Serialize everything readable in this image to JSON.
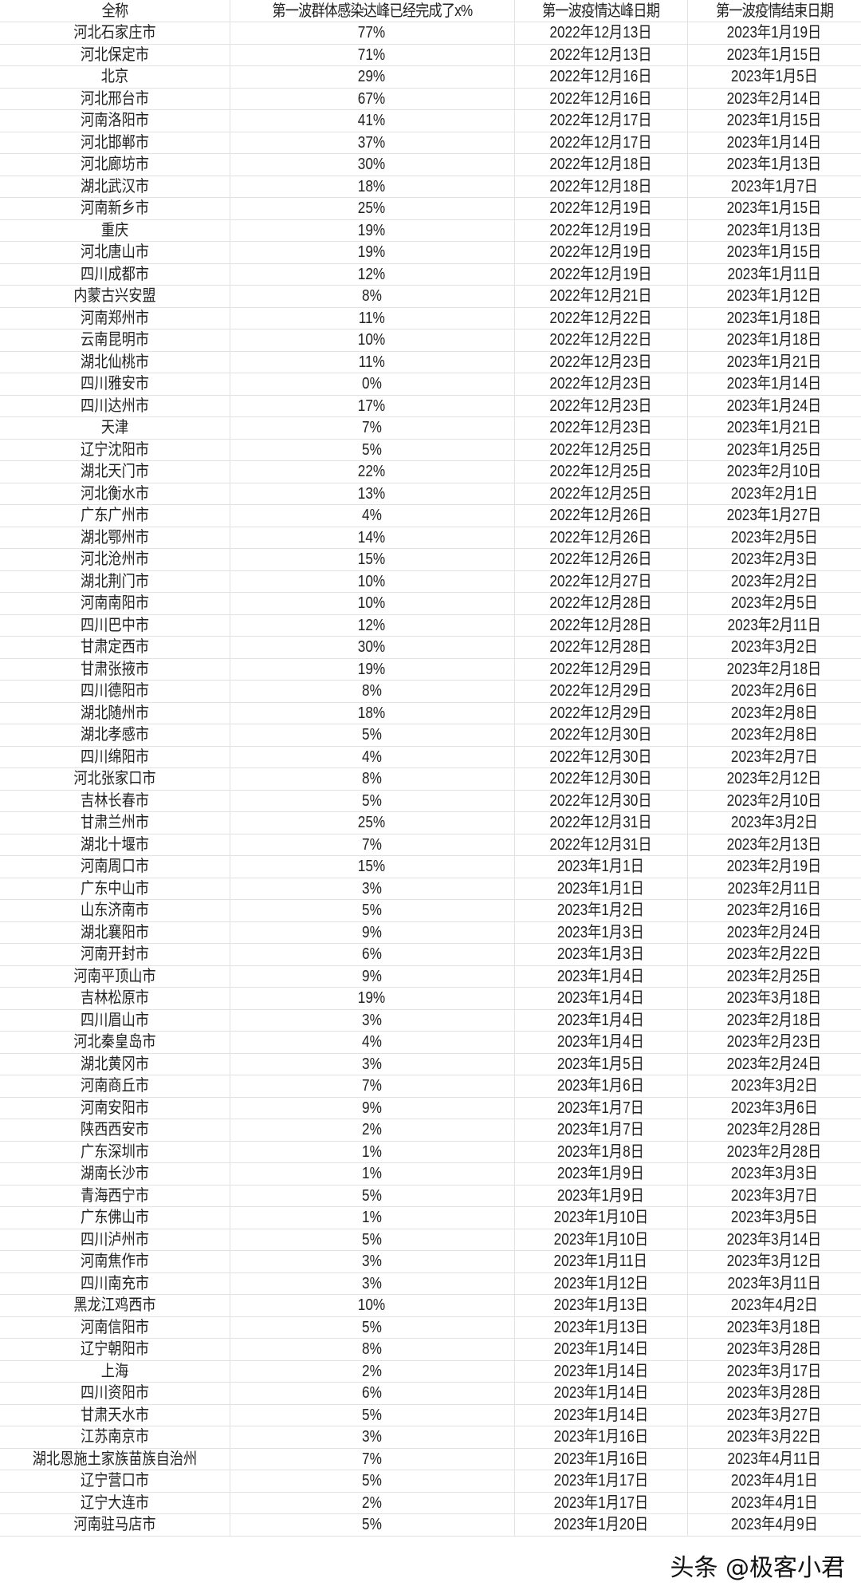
{
  "table": {
    "headers": [
      "全称",
      "第一波群体感染达峰已经完成了x%",
      "第一波疫情达峰日期",
      "第一波疫情结束日期"
    ],
    "rows": [
      [
        "河北石家庄市",
        "77%",
        "2022年12月13日",
        "2023年1月19日"
      ],
      [
        "河北保定市",
        "71%",
        "2022年12月13日",
        "2023年1月15日"
      ],
      [
        "北京",
        "29%",
        "2022年12月16日",
        "2023年1月5日"
      ],
      [
        "河北邢台市",
        "67%",
        "2022年12月16日",
        "2023年2月14日"
      ],
      [
        "河南洛阳市",
        "41%",
        "2022年12月17日",
        "2023年1月15日"
      ],
      [
        "河北邯郸市",
        "37%",
        "2022年12月17日",
        "2023年1月14日"
      ],
      [
        "河北廊坊市",
        "30%",
        "2022年12月18日",
        "2023年1月13日"
      ],
      [
        "湖北武汉市",
        "18%",
        "2022年12月18日",
        "2023年1月7日"
      ],
      [
        "河南新乡市",
        "25%",
        "2022年12月19日",
        "2023年1月15日"
      ],
      [
        "重庆",
        "19%",
        "2022年12月19日",
        "2023年1月13日"
      ],
      [
        "河北唐山市",
        "19%",
        "2022年12月19日",
        "2023年1月15日"
      ],
      [
        "四川成都市",
        "12%",
        "2022年12月19日",
        "2023年1月11日"
      ],
      [
        "内蒙古兴安盟",
        "8%",
        "2022年12月21日",
        "2023年1月12日"
      ],
      [
        "河南郑州市",
        "11%",
        "2022年12月22日",
        "2023年1月18日"
      ],
      [
        "云南昆明市",
        "10%",
        "2022年12月22日",
        "2023年1月18日"
      ],
      [
        "湖北仙桃市",
        "11%",
        "2022年12月23日",
        "2023年1月21日"
      ],
      [
        "四川雅安市",
        "0%",
        "2022年12月23日",
        "2023年1月14日"
      ],
      [
        "四川达州市",
        "17%",
        "2022年12月23日",
        "2023年1月24日"
      ],
      [
        "天津",
        "7%",
        "2022年12月23日",
        "2023年1月21日"
      ],
      [
        "辽宁沈阳市",
        "5%",
        "2022年12月25日",
        "2023年1月25日"
      ],
      [
        "湖北天门市",
        "22%",
        "2022年12月25日",
        "2023年2月10日"
      ],
      [
        "河北衡水市",
        "13%",
        "2022年12月25日",
        "2023年2月1日"
      ],
      [
        "广东广州市",
        "4%",
        "2022年12月26日",
        "2023年1月27日"
      ],
      [
        "湖北鄂州市",
        "14%",
        "2022年12月26日",
        "2023年2月5日"
      ],
      [
        "河北沧州市",
        "15%",
        "2022年12月26日",
        "2023年2月3日"
      ],
      [
        "湖北荆门市",
        "10%",
        "2022年12月27日",
        "2023年2月2日"
      ],
      [
        "河南南阳市",
        "10%",
        "2022年12月28日",
        "2023年2月5日"
      ],
      [
        "四川巴中市",
        "12%",
        "2022年12月28日",
        "2023年2月11日"
      ],
      [
        "甘肃定西市",
        "30%",
        "2022年12月28日",
        "2023年3月2日"
      ],
      [
        "甘肃张掖市",
        "19%",
        "2022年12月29日",
        "2023年2月18日"
      ],
      [
        "四川德阳市",
        "8%",
        "2022年12月29日",
        "2023年2月6日"
      ],
      [
        "湖北随州市",
        "18%",
        "2022年12月29日",
        "2023年2月8日"
      ],
      [
        "湖北孝感市",
        "5%",
        "2022年12月30日",
        "2023年2月8日"
      ],
      [
        "四川绵阳市",
        "4%",
        "2022年12月30日",
        "2023年2月7日"
      ],
      [
        "河北张家口市",
        "8%",
        "2022年12月30日",
        "2023年2月12日"
      ],
      [
        "吉林长春市",
        "5%",
        "2022年12月30日",
        "2023年2月10日"
      ],
      [
        "甘肃兰州市",
        "25%",
        "2022年12月31日",
        "2023年3月2日"
      ],
      [
        "湖北十堰市",
        "7%",
        "2022年12月31日",
        "2023年2月13日"
      ],
      [
        "河南周口市",
        "15%",
        "2023年1月1日",
        "2023年2月19日"
      ],
      [
        "广东中山市",
        "3%",
        "2023年1月1日",
        "2023年2月11日"
      ],
      [
        "山东济南市",
        "5%",
        "2023年1月2日",
        "2023年2月16日"
      ],
      [
        "湖北襄阳市",
        "9%",
        "2023年1月3日",
        "2023年2月24日"
      ],
      [
        "河南开封市",
        "6%",
        "2023年1月3日",
        "2023年2月22日"
      ],
      [
        "河南平顶山市",
        "9%",
        "2023年1月4日",
        "2023年2月25日"
      ],
      [
        "吉林松原市",
        "19%",
        "2023年1月4日",
        "2023年3月18日"
      ],
      [
        "四川眉山市",
        "3%",
        "2023年1月4日",
        "2023年2月18日"
      ],
      [
        "河北秦皇岛市",
        "4%",
        "2023年1月4日",
        "2023年2月23日"
      ],
      [
        "湖北黄冈市",
        "3%",
        "2023年1月5日",
        "2023年2月24日"
      ],
      [
        "河南商丘市",
        "7%",
        "2023年1月6日",
        "2023年3月2日"
      ],
      [
        "河南安阳市",
        "9%",
        "2023年1月7日",
        "2023年3月6日"
      ],
      [
        "陕西西安市",
        "2%",
        "2023年1月7日",
        "2023年2月28日"
      ],
      [
        "广东深圳市",
        "1%",
        "2023年1月8日",
        "2023年2月28日"
      ],
      [
        "湖南长沙市",
        "1%",
        "2023年1月9日",
        "2023年3月3日"
      ],
      [
        "青海西宁市",
        "5%",
        "2023年1月9日",
        "2023年3月7日"
      ],
      [
        "广东佛山市",
        "1%",
        "2023年1月10日",
        "2023年3月5日"
      ],
      [
        "四川泸州市",
        "5%",
        "2023年1月10日",
        "2023年3月14日"
      ],
      [
        "河南焦作市",
        "3%",
        "2023年1月11日",
        "2023年3月12日"
      ],
      [
        "四川南充市",
        "3%",
        "2023年1月12日",
        "2023年3月11日"
      ],
      [
        "黑龙江鸡西市",
        "10%",
        "2023年1月13日",
        "2023年4月2日"
      ],
      [
        "河南信阳市",
        "5%",
        "2023年1月13日",
        "2023年3月18日"
      ],
      [
        "辽宁朝阳市",
        "8%",
        "2023年1月14日",
        "2023年3月28日"
      ],
      [
        "上海",
        "2%",
        "2023年1月14日",
        "2023年3月17日"
      ],
      [
        "四川资阳市",
        "6%",
        "2023年1月14日",
        "2023年3月28日"
      ],
      [
        "甘肃天水市",
        "5%",
        "2023年1月14日",
        "2023年3月27日"
      ],
      [
        "江苏南京市",
        "3%",
        "2023年1月16日",
        "2023年3月22日"
      ],
      [
        "湖北恩施土家族苗族自治州",
        "7%",
        "2023年1月16日",
        "2023年4月11日"
      ],
      [
        "辽宁营口市",
        "5%",
        "2023年1月17日",
        "2023年4月1日"
      ],
      [
        "辽宁大连市",
        "2%",
        "2023年1月17日",
        "2023年4月1日"
      ],
      [
        "河南驻马店市",
        "5%",
        "2023年1月20日",
        "2023年4月9日"
      ]
    ]
  },
  "watermark": "头条 @极客小君"
}
